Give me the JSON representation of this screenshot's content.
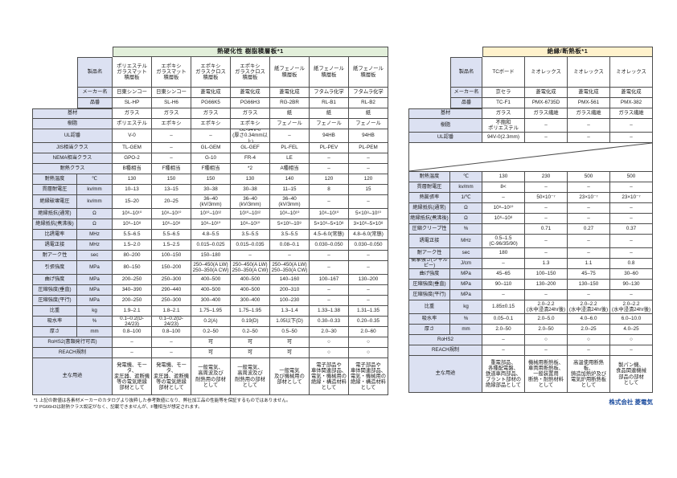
{
  "page": {
    "footnotes": [
      "*1 上記の数値は各素材メーカーのカタログより抜粋した参考数値になり、弊社加工品の性能等を保証するものではありません。",
      "*2 PG66H3は耐熱クラス設定がなく、記載できませんが、F種相当が想定されます。"
    ],
    "company": "株式会社 菱電気",
    "colors": {
      "left_header": "#e2efda",
      "right_header": "#fff2cc",
      "label_bg": "#dce1f2",
      "border": "#4d4d4d",
      "company_text": "#1f4fa0"
    }
  },
  "left_table": {
    "title": "熱硬化性 樹脂積層板*1",
    "header_rows": [
      {
        "label": "製品名",
        "values": [
          "ポリエステル\nガラスマット\n積層板",
          "エポキシ\nガラスマット\n積層板",
          "エポキシ\nガラスクロス\n積層板",
          "エポキシ\nガラスクロス\n積層板",
          "紙フェノール\n積層板",
          "紙フェノール\n積層板",
          "紙フェノール\n積層板"
        ]
      },
      {
        "label": "メーカー名",
        "values": [
          "日東シンコー",
          "日東シンコー",
          "菱電化成",
          "菱電化成",
          "菱電化成",
          "フタムラ化学",
          "フタムラ化学"
        ]
      },
      {
        "label": "品番",
        "values": [
          "SL-HP",
          "SL-H6",
          "PG66K5",
          "PG66H3",
          "RG-2BR",
          "RL-B1",
          "RL-B2"
        ]
      }
    ],
    "rows": [
      {
        "label": "基材",
        "unit": null,
        "values": [
          "ガラス",
          "ガラス",
          "ガラス",
          "ガラス",
          "紙",
          "紙",
          "紙"
        ]
      },
      {
        "label": "樹脂",
        "unit": null,
        "values": [
          "ポリエステル",
          "エポキシ",
          "エポキシ",
          "エポキシ",
          "フェノール",
          "フェノール",
          "フェノール"
        ]
      },
      {
        "label": "UL認番",
        "unit": null,
        "values": [
          "V-0",
          "–",
          "–",
          "UL-94V-0\n(厚さ0.34mm以上)",
          "–",
          "94HB",
          "94HB"
        ]
      },
      {
        "label": "JIS相当クラス",
        "unit": null,
        "values": [
          "TL-GEM",
          "–",
          "GL-GEM",
          "GL-GEF",
          "PL-FEL",
          "PL-PEV",
          "PL-PEM"
        ]
      },
      {
        "label": "NEMA相当クラス",
        "unit": null,
        "values": [
          "GPO-2",
          "–",
          "G-10",
          "FR-4",
          "LE",
          "–",
          "–"
        ]
      },
      {
        "label": "耐熱クラス",
        "unit": null,
        "values": [
          "B種相当",
          "F種相当",
          "F種相当",
          "*2",
          "A種相当",
          "–",
          "–"
        ]
      },
      {
        "label": "耐熱温度",
        "unit": "℃",
        "values": [
          "130",
          "150",
          "150",
          "130",
          "140",
          "120",
          "120"
        ]
      },
      {
        "label": "貫層耐電圧",
        "unit": "kv/mm",
        "values": [
          "10–13",
          "13–15",
          "30–38",
          "30–38",
          "11–15",
          "8",
          "15"
        ]
      },
      {
        "label": "絶縁破壊電圧",
        "unit": "kv/mm",
        "values": [
          "15–20",
          "20–25",
          "36–40\n(kV/3mm)",
          "36–40\n(kV/3mm)",
          "36–40\n(kV/3mm)",
          "–",
          "–"
        ]
      },
      {
        "label": "絶縁抵抗(通常)",
        "unit": "Ω",
        "values": [
          "10⁸–10¹⁰",
          "10⁸–10¹⁰",
          "10¹⁰–10¹²",
          "10¹⁰–10¹²",
          "10⁸–10¹⁰",
          "10⁸–10¹⁰",
          "5×10⁸–10¹⁰"
        ]
      },
      {
        "label": "絶縁抵抗(煮沸後)",
        "unit": "Ω",
        "values": [
          "10⁶–10⁸",
          "10⁶–10⁸",
          "10⁸–10¹⁰",
          "10⁸–10¹⁰",
          "5×10⁶–10⁸",
          "5×10⁶–5×10⁸",
          "3×10⁶–5×10⁸"
        ]
      },
      {
        "label": "比誘電率",
        "unit": "MHz",
        "values": [
          "5.5–6.5",
          "5.5–6.5",
          "4.8–5.5",
          "3.5–5.5",
          "3.5–5.5",
          "4.5–6.0(常態)",
          "4.8–6.0(常態)"
        ]
      },
      {
        "label": "誘電正接",
        "unit": "MHz",
        "values": [
          "1.5–2.0",
          "1.5–2.5",
          "0.015–0.025",
          "0.015–0.035",
          "0.08–0.1",
          "0.030–0.050",
          "0.030–0.050"
        ]
      },
      {
        "label": "耐アーク性",
        "unit": "sec",
        "values": [
          "80–200",
          "100–150",
          "150–180",
          "–",
          "–",
          "–",
          "–"
        ]
      },
      {
        "label": "引張強度",
        "unit": "MPa",
        "values": [
          "80–150",
          "150–200",
          "250–450(A LW)\n250–350(A CW)",
          "250–450(A LW)\n250–350(A CW)",
          "250–450(A LW)\n250–350(A CW)",
          "–",
          "–"
        ]
      },
      {
        "label": "曲げ強度",
        "unit": "MPa",
        "values": [
          "200–250",
          "250–300",
          "400–500",
          "400–500",
          "140–160",
          "100–167",
          "130–200"
        ]
      },
      {
        "label": "圧縮強度(垂直)",
        "unit": "MPa",
        "values": [
          "340–390",
          "290–440",
          "400–500",
          "400–500",
          "200–310",
          "–",
          "–"
        ]
      },
      {
        "label": "圧縮強度(平行)",
        "unit": "MPa",
        "values": [
          "200–250",
          "250–300",
          "300–400",
          "300–400",
          "100–230",
          "–",
          "–"
        ]
      },
      {
        "label": "比重",
        "unit": "kg",
        "values": [
          "1.9–2.1",
          "1.8–2.1",
          "1.75–1.95",
          "1.75–1.95",
          "1.3–1.4",
          "1.33–1.38",
          "1.31–1.35"
        ]
      },
      {
        "label": "吸水率",
        "unit": "%",
        "values": [
          "0.1–0.2(D-24/23)",
          "0.1–0.2(D-24/23)",
          "0.2(A)",
          "0.19(D)",
          "1.05以下(D)",
          "0.30–0.33",
          "0.20–0.35"
        ]
      },
      {
        "label": "厚さ",
        "unit": "mm",
        "values": [
          "0.8–100",
          "0.8–100",
          "0.2–50",
          "0.2–50",
          "0.5–50",
          "2.0–30",
          "2.0–60"
        ]
      },
      {
        "label": "RoHS2(書類発行可否)",
        "unit": null,
        "values": [
          "–",
          "–",
          "可",
          "可",
          "可",
          "○",
          "○"
        ]
      },
      {
        "label": "REACH規制",
        "unit": null,
        "values": [
          "–",
          "–",
          "可",
          "可",
          "可",
          "○",
          "○"
        ]
      },
      {
        "label": "主な用途",
        "unit": null,
        "values": [
          "発電機、モータ、\n変圧器、遮断機\n等の電気絶縁\n部材として",
          "発電機、モータ、\n変圧器、遮断機\n等の電気絶縁\n部材として",
          "一般電気、\n高周波及び\n耐熱用の部材\nとして",
          "一般電気、\n高周波及び\n耐熱用の部材\nとして",
          "一般電気\n及び機械用の\n部材として",
          "電子部品や\n車体関連部品、\n電気・機械用の\n絶縁・構造材料\nとして",
          "電子部品や\n車体関連部品、\n電気・機械用の\n絶縁・構造材料\nとして"
        ]
      }
    ]
  },
  "right_table": {
    "title": "絶縁/断熱板*1",
    "header_rows": [
      {
        "label": "製品名",
        "values": [
          "TCボード",
          "ミオレックス",
          "ミオレックス",
          "ミオレックス"
        ]
      },
      {
        "label": "メーカー名",
        "values": [
          "京セラ",
          "菱電化成",
          "菱電化成",
          "菱電化成"
        ]
      },
      {
        "label": "品番",
        "values": [
          "TC-F1",
          "PMX-6735D",
          "PMX-561",
          "PMX-382"
        ]
      }
    ],
    "rows": [
      {
        "label": "基材",
        "unit": null,
        "values": [
          "ガラス",
          "ガラス繊維",
          "ガラス繊維",
          "ガラス繊維"
        ]
      },
      {
        "label": "樹脂",
        "unit": null,
        "values": [
          "不飽和\nポリエステル",
          "–",
          "–",
          "–"
        ]
      },
      {
        "label": "UL認番",
        "unit": null,
        "values": [
          "94V-0(2.3mm)",
          "–",
          "–",
          "–"
        ]
      },
      {
        "diagonal": true
      },
      {
        "label": "耐熱温度",
        "unit": "℃",
        "values": [
          "130",
          "230",
          "500",
          "500"
        ]
      },
      {
        "label": "貫層耐電圧",
        "unit": "kv/mm",
        "values": [
          "8<",
          "–",
          "–",
          "–"
        ]
      },
      {
        "label": "熱膨張率",
        "unit": "1/℃",
        "values": [
          "–",
          "50×10⁻⁷",
          "23×10⁻⁷",
          "23×10⁻⁷"
        ]
      },
      {
        "label": "絶縁抵抗(通常)",
        "unit": "Ω",
        "values": [
          "10⁸–10¹⁰",
          "–",
          "–",
          "–"
        ]
      },
      {
        "label": "絶縁抵抗(煮沸後)",
        "unit": "Ω",
        "values": [
          "10⁶–10⁸",
          "–",
          "–",
          "–"
        ]
      },
      {
        "label": "圧縮クリープ性",
        "unit": "%",
        "values": [
          "",
          "0.71",
          "0.27",
          "0.37"
        ]
      },
      {
        "label": "誘電正接",
        "unit": "MHz",
        "values": [
          "0.5–1.5\n(C-96/35/90)",
          "–",
          "–",
          "–"
        ]
      },
      {
        "label": "耐アーク性",
        "unit": "sec",
        "values": [
          "180",
          "–",
          "–",
          "–"
        ]
      },
      {
        "label": "衝撃強さ(シャルピー)",
        "unit": "J/cm",
        "values": [
          "–",
          "1.3",
          "1.1",
          "0.8"
        ]
      },
      {
        "label": "曲げ強度",
        "unit": "MPa",
        "values": [
          "45–65",
          "100–150",
          "45–75",
          "30–60"
        ]
      },
      {
        "label": "圧縮強度(垂直)",
        "unit": "MPa",
        "values": [
          "90–110",
          "130–200",
          "130–150",
          "90–130"
        ]
      },
      {
        "label": "圧縮強度(平行)",
        "unit": "MPa",
        "values": [
          "–",
          "–",
          "–",
          "–"
        ]
      },
      {
        "label": "比重",
        "unit": "kg",
        "values": [
          "1.85±0.15",
          "2.0–2.2\n(水中浸漬24hr後)",
          "2.0–2.2\n(水中浸漬24hr後)",
          "2.0–2.2\n(水中浸漬24hr後)"
        ]
      },
      {
        "label": "吸水率",
        "unit": "%",
        "values": [
          "0.05–0.1",
          "2.0–5.0",
          "4.0–6.0",
          "6.0–10.0"
        ]
      },
      {
        "label": "厚さ",
        "unit": "mm",
        "values": [
          "2.0–50",
          "2.0–50",
          "2.0–25",
          "4.0–25"
        ]
      },
      {
        "label": "RoHS2",
        "unit": null,
        "values": [
          "–",
          "○",
          "○",
          "○"
        ]
      },
      {
        "label": "REACH規制",
        "unit": null,
        "values": [
          "–",
          "–",
          "–",
          "–"
        ]
      },
      {
        "label": "主な用途",
        "unit": null,
        "values": [
          "重電部品、\n各種配電盤、\n鉄道車両部品、\nプラント部材の\n絶縁部品として",
          "機械用断熱板、\n車両用断熱板、\n一般装置用\n断熱・耐熱材料\nとして",
          "高温使用断熱板、\n鋳造加熱炉及び\n電気炉用断熱板\nとして",
          "製パン機、\n食品関連機械\n部品の部材\nとして"
        ]
      }
    ]
  }
}
